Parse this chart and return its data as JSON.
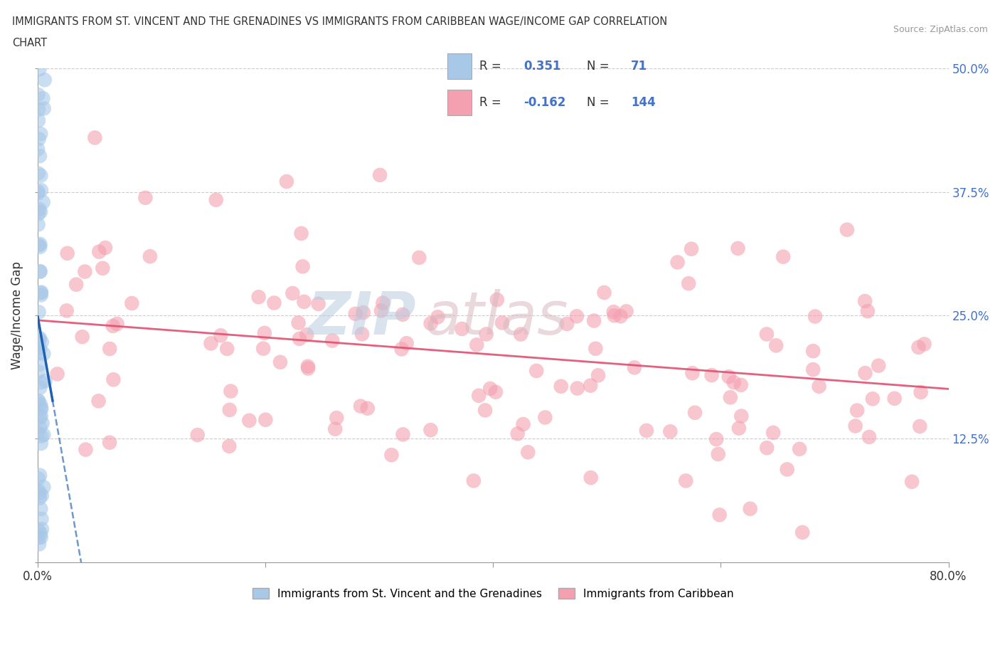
{
  "title_line1": "IMMIGRANTS FROM ST. VINCENT AND THE GRENADINES VS IMMIGRANTS FROM CARIBBEAN WAGE/INCOME GAP CORRELATION",
  "title_line2": "CHART",
  "source": "Source: ZipAtlas.com",
  "ylabel": "Wage/Income Gap",
  "xlim": [
    0.0,
    0.8
  ],
  "ylim": [
    0.0,
    0.5
  ],
  "blue_color": "#a8c8e8",
  "blue_line_color": "#2060b0",
  "pink_color": "#f4a0b0",
  "pink_line_color": "#e05070",
  "blue_R": 0.351,
  "blue_N": 71,
  "pink_R": -0.162,
  "pink_N": 144,
  "legend_label_blue": "Immigrants from St. Vincent and the Grenadines",
  "legend_label_pink": "Immigrants from Caribbean",
  "blue_seed": 77,
  "pink_seed": 55,
  "grid_color": "#cccccc",
  "watermark_zip_color": "#b8cce0",
  "watermark_atlas_color": "#d8b8c0"
}
